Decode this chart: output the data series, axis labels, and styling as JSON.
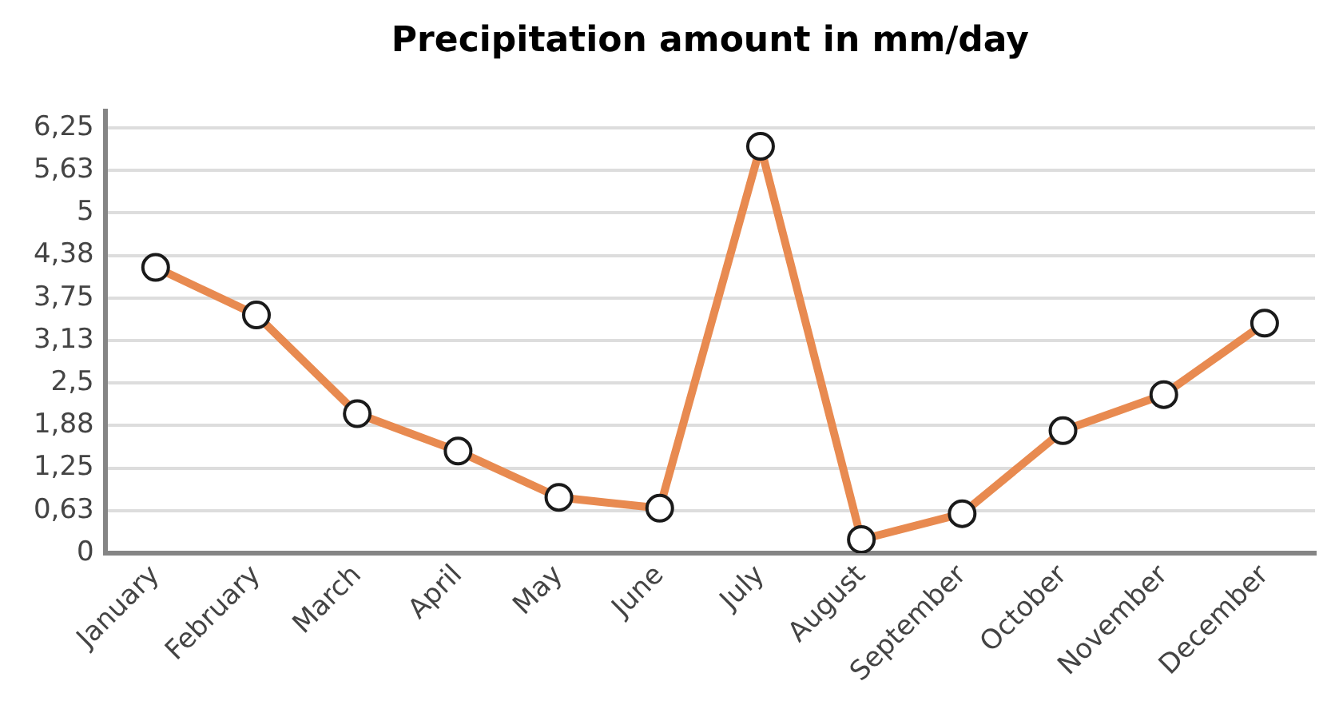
{
  "chart_data": {
    "type": "line",
    "title": "Precipitation amount in mm/day",
    "categories": [
      "January",
      "February",
      "March",
      "April",
      "May",
      "June",
      "July",
      "August",
      "September",
      "October",
      "November",
      "December"
    ],
    "values": [
      4.2,
      3.5,
      2.05,
      1.5,
      0.82,
      0.66,
      5.98,
      0.2,
      0.58,
      1.8,
      2.33,
      3.38
    ],
    "color": "#e88a50",
    "ylim": [
      0,
      6.5
    ],
    "yticks": [
      0,
      {
        "value": 0.625,
        "label": "0,63"
      },
      {
        "value": 1.25,
        "label": "1,25"
      },
      {
        "value": 1.875,
        "label": "1,88"
      },
      {
        "value": 2.5,
        "label": "2,5"
      },
      {
        "value": 3.125,
        "label": "3,13"
      },
      {
        "value": 3.75,
        "label": "3,75"
      },
      {
        "value": 4.375,
        "label": "4,38"
      },
      5,
      {
        "value": 5.625,
        "label": "5,63"
      },
      {
        "value": 6.25,
        "label": "6,25"
      }
    ],
    "grid": "y",
    "marker": "circle",
    "line_style": "solid"
  }
}
